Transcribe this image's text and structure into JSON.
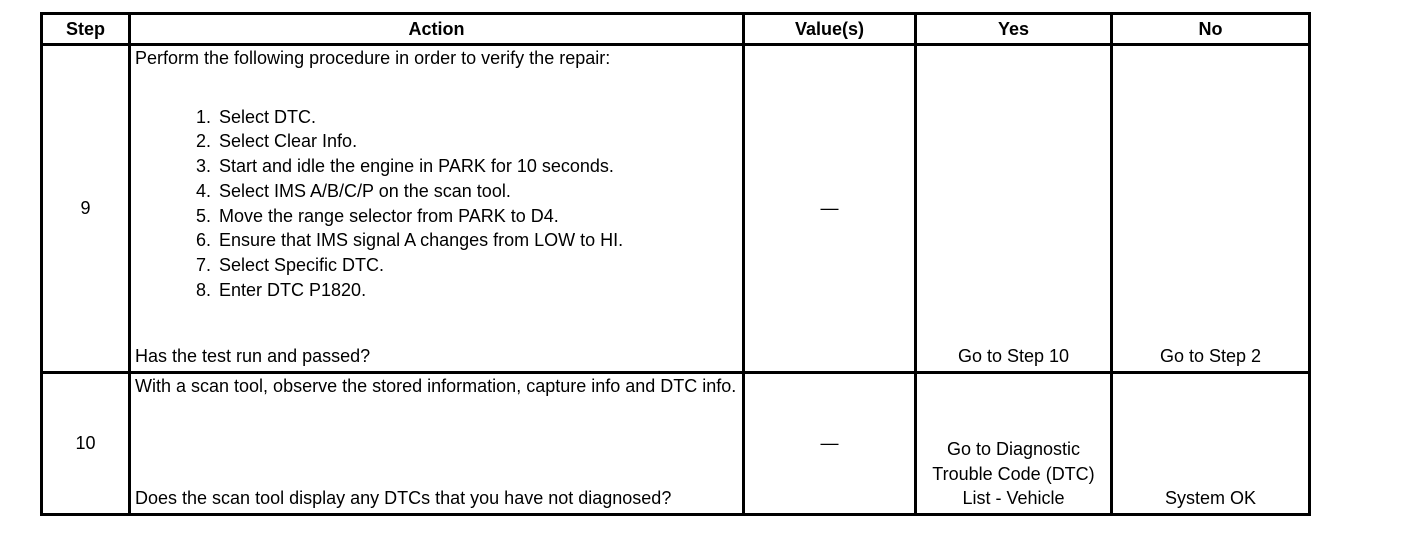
{
  "headers": {
    "step": "Step",
    "action": "Action",
    "values": "Value(s)",
    "yes": "Yes",
    "no": "No"
  },
  "rows": [
    {
      "step": "9",
      "intro": "Perform the following procedure in order to verify the repair:",
      "items": [
        {
          "n": "1.",
          "t": "Select DTC."
        },
        {
          "n": "2.",
          "t": "Select Clear Info."
        },
        {
          "n": "3.",
          "t": "Start and idle the engine in PARK for 10 seconds."
        },
        {
          "n": "4.",
          "t": "Select IMS A/B/C/P on the scan tool."
        },
        {
          "n": "5.",
          "t": "Move the range selector from PARK to D4."
        },
        {
          "n": "6.",
          "t": "Ensure that IMS signal A changes from LOW to HI."
        },
        {
          "n": "7.",
          "t": "Select Specific DTC."
        },
        {
          "n": "8.",
          "t": "Enter DTC P1820."
        }
      ],
      "question": "Has the test run and passed?",
      "value": "—",
      "yes": "Go to Step 10",
      "no": "Go to Step 2"
    },
    {
      "step": "10",
      "intro": "With a scan tool, observe the stored information, capture info and DTC info.",
      "question": "Does the scan tool display any DTCs that you have not diagnosed?",
      "value": "—",
      "yes": "Go to Diagnostic Trouble Code (DTC) List - Vehicle",
      "no": "System OK"
    }
  ]
}
